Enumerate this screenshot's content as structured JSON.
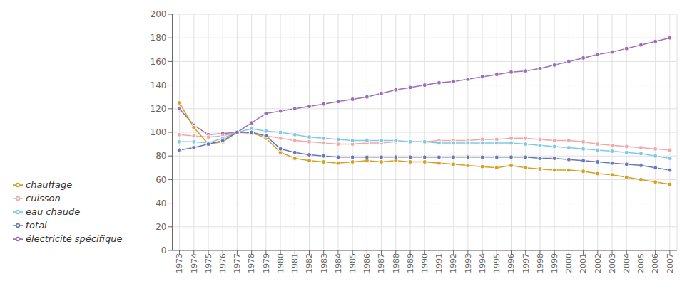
{
  "chart_data": {
    "type": "line",
    "x": [
      1973,
      1974,
      1975,
      1976,
      1977,
      1978,
      1979,
      1980,
      1981,
      1982,
      1983,
      1984,
      1985,
      1986,
      1987,
      1988,
      1989,
      1990,
      1991,
      1992,
      1993,
      1994,
      1995,
      1996,
      1997,
      1998,
      1999,
      2000,
      2001,
      2002,
      2003,
      2004,
      2005,
      2006,
      2007
    ],
    "xlim": [
      1972.5,
      2007.5
    ],
    "xticks": [
      1973,
      1974,
      1975,
      1976,
      1977,
      1978,
      1979,
      1980,
      1981,
      1982,
      1983,
      1984,
      1985,
      1986,
      1987,
      1988,
      1989,
      1990,
      1991,
      1992,
      1993,
      1994,
      1995,
      1996,
      1997,
      1998,
      1999,
      2000,
      2001,
      2002,
      2003,
      2004,
      2005,
      2006,
      2007
    ],
    "ylim": [
      0,
      200
    ],
    "yticks": [
      0,
      20,
      40,
      60,
      80,
      100,
      120,
      140,
      160,
      180,
      200
    ],
    "grid": true,
    "legend": "left",
    "marker": "circle",
    "series": [
      {
        "name": "électricité spécifique",
        "color": "#9b6fb5",
        "values": [
          120,
          106,
          98,
          99,
          100,
          108,
          116,
          118,
          120,
          122,
          124,
          126,
          128,
          130,
          133,
          136,
          138,
          140,
          142,
          143,
          145,
          147,
          149,
          151,
          152,
          154,
          157,
          160,
          163,
          166,
          168,
          171,
          174,
          177,
          180
        ]
      },
      {
        "name": "cuisson",
        "color": "#f0a8a8",
        "values": [
          98,
          97,
          96,
          97,
          100,
          99,
          97,
          95,
          93,
          92,
          91,
          90,
          90,
          91,
          91,
          92,
          92,
          92,
          93,
          93,
          93,
          94,
          94,
          95,
          95,
          94,
          93,
          93,
          92,
          90,
          89,
          88,
          87,
          86,
          85
        ]
      },
      {
        "name": "eau chaude",
        "color": "#80c8e8",
        "values": [
          92,
          92,
          91,
          95,
          100,
          103,
          101,
          100,
          98,
          96,
          95,
          94,
          93,
          93,
          93,
          93,
          92,
          92,
          91,
          91,
          91,
          91,
          91,
          91,
          90,
          89,
          88,
          87,
          86,
          85,
          84,
          83,
          82,
          80,
          78
        ]
      },
      {
        "name": "chauffage",
        "color": "#d4a020",
        "values": [
          125,
          104,
          90,
          92,
          100,
          100,
          95,
          83,
          78,
          76,
          75,
          74,
          75,
          76,
          75,
          76,
          75,
          75,
          74,
          73,
          72,
          71,
          70,
          72,
          70,
          69,
          68,
          68,
          67,
          65,
          64,
          62,
          60,
          58,
          56
        ]
      },
      {
        "name": "total",
        "color": "#6878b8",
        "values": [
          85,
          87,
          90,
          93,
          100,
          100,
          97,
          86,
          83,
          81,
          80,
          79,
          79,
          79,
          79,
          79,
          79,
          79,
          79,
          79,
          79,
          79,
          79,
          79,
          79,
          78,
          78,
          77,
          76,
          75,
          74,
          73,
          72,
          70,
          68
        ]
      }
    ]
  }
}
